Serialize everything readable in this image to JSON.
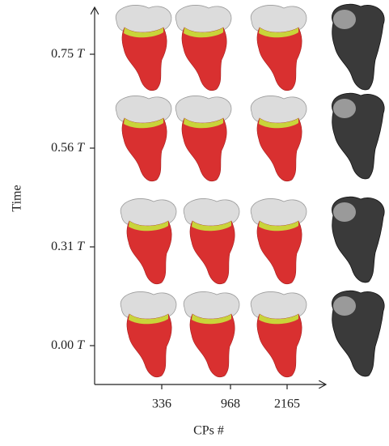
{
  "y_axis": {
    "label": "Time",
    "ticks": [
      {
        "value": "0.75",
        "unit": "T"
      },
      {
        "value": "0.56",
        "unit": "T"
      },
      {
        "value": "0.31",
        "unit": "T"
      },
      {
        "value": "0.00",
        "unit": "T"
      }
    ]
  },
  "x_axis": {
    "label": "CPs #",
    "ticks": [
      "336",
      "968",
      "2165"
    ]
  }
}
